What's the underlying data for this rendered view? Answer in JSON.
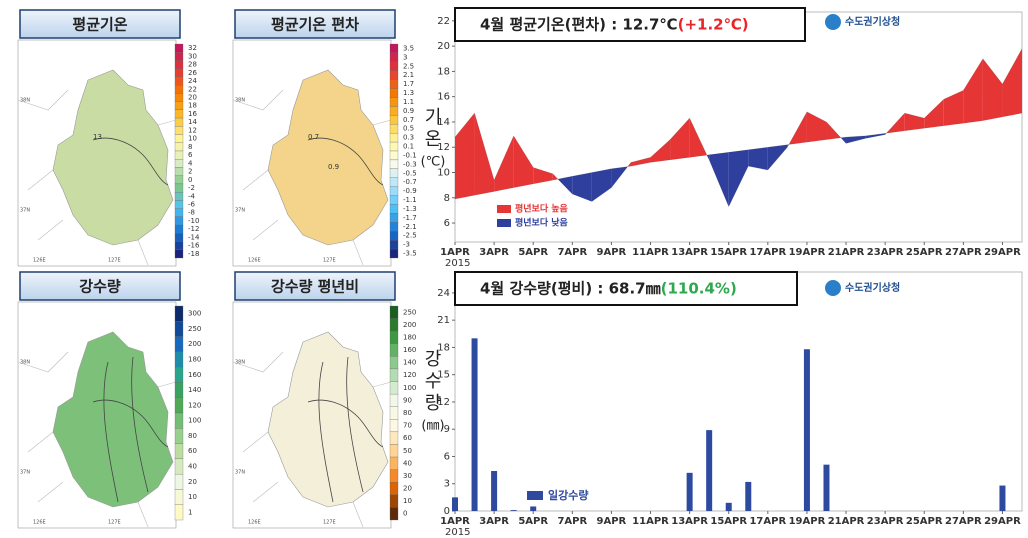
{
  "maps": [
    {
      "title": "평균기온",
      "fill": "#c9dca3",
      "colors": [
        "#c2185b",
        "#e53935",
        "#f57c00",
        "#fbc02d",
        "#fff59d",
        "#dcedc8",
        "#81c784",
        "#4fc3f7",
        "#1976d2",
        "#1a237e"
      ],
      "colorbar": [
        "32",
        "30",
        "28",
        "26",
        "24",
        "22",
        "20",
        "18",
        "16",
        "14",
        "12",
        "10",
        "8",
        "6",
        "4",
        "2",
        "0",
        "-2",
        "-4",
        "-6",
        "-8",
        "-10",
        "-12",
        "-14",
        "-16",
        "-18"
      ],
      "contour_labels": [
        "13"
      ]
    },
    {
      "title": "평균기온 편차",
      "fill": "#f3d48a",
      "colors": [
        "#c2185b",
        "#e53935",
        "#f57c00",
        "#fbc02d",
        "#fff59d",
        "#fffde7",
        "#b3e5fc",
        "#4fc3f7",
        "#1976d2",
        "#1a237e"
      ],
      "colorbar": [
        "3.5",
        "3",
        "2.5",
        "2.1",
        "1.7",
        "1.3",
        "1.1",
        "0.9",
        "0.7",
        "0.5",
        "0.3",
        "0.1",
        "-0.1",
        "-0.3",
        "-0.5",
        "-0.7",
        "-0.9",
        "-1.1",
        "-1.3",
        "-1.7",
        "-2.1",
        "-2.5",
        "-3",
        "-3.5"
      ],
      "contour_labels": [
        "0.7",
        "0.9"
      ]
    },
    {
      "title": "강수량",
      "fill": "#7cc07a",
      "colors": [
        "#0d2b6b",
        "#1565c0",
        "#26a69a",
        "#43a047",
        "#81c784",
        "#c5e1a5",
        "#f1f8e9",
        "#fff9c4"
      ],
      "colorbar": [
        "300",
        "250",
        "200",
        "180",
        "160",
        "140",
        "120",
        "100",
        "80",
        "60",
        "40",
        "20",
        "10",
        "1"
      ],
      "contour_labels": []
    },
    {
      "title": "강수량 평년비",
      "fill": "#f4efd9",
      "colors": [
        "#1b5e20",
        "#43a047",
        "#a5d6a7",
        "#f1f8e9",
        "#fff8e1",
        "#ffcc80",
        "#ef6c00",
        "#5d2a0a"
      ],
      "colorbar": [
        "250",
        "200",
        "180",
        "160",
        "140",
        "120",
        "100",
        "90",
        "80",
        "70",
        "60",
        "50",
        "40",
        "30",
        "20",
        "10",
        "0"
      ],
      "contour_labels": []
    }
  ],
  "geo_labels": [
    "38N",
    "37N",
    "126E",
    "127E"
  ],
  "chart_data": [
    {
      "type": "area_diff",
      "title": "4월 평균기온(편차) : 12.7℃",
      "title_note": "(+1.2℃)",
      "title_note_color": "#e8262a",
      "logo": "수도권기상청",
      "ylabel": [
        "기",
        "온",
        "(℃)"
      ],
      "categories": [
        "1APR",
        null,
        "3APR",
        null,
        "5APR",
        null,
        "7APR",
        null,
        "9APR",
        null,
        "11APR",
        null,
        "13APR",
        null,
        "15APR",
        null,
        "17APR",
        null,
        "19APR",
        null,
        "21APR",
        null,
        "23APR",
        null,
        "25APR",
        null,
        "27APR",
        null,
        "29APR",
        null
      ],
      "x_year": "2015",
      "series": [
        {
          "values": [
            12.8,
            14.7,
            9.4,
            12.9,
            10.4,
            9.9,
            8.3,
            7.7,
            8.8,
            10.8,
            11.2,
            12.6,
            14.3,
            11.0,
            7.3,
            10.5,
            10.2,
            12.0,
            14.8,
            14.0,
            12.3,
            12.7,
            13.0,
            14.7,
            14.3,
            15.8,
            16.5,
            19.0,
            17.0,
            19.8
          ]
        },
        {
          "values": [
            7.9,
            8.2,
            8.5,
            8.8,
            9.1,
            9.4,
            9.7,
            10.0,
            10.3,
            10.5,
            10.8,
            11.0,
            11.2,
            11.4,
            11.6,
            11.8,
            12.0,
            12.2,
            12.4,
            12.6,
            12.8,
            12.9,
            13.1,
            13.3,
            13.5,
            13.7,
            13.9,
            14.1,
            14.4,
            14.7
          ]
        }
      ],
      "legend": [
        {
          "label": "평년보다 높음",
          "color": "#e53535"
        },
        {
          "label": "평년보다 낮음",
          "color": "#2f3f9e"
        }
      ],
      "ylim": [
        4.5,
        22.7
      ],
      "yticks": [
        6,
        8,
        10,
        12,
        14,
        16,
        18,
        20,
        22
      ]
    },
    {
      "type": "bar",
      "title": "4월 강수량(평비) : 68.7㎜",
      "title_note": "(110.4%)",
      "title_note_color": "#2fa84f",
      "logo": "수도권기상청",
      "ylabel": [
        "강",
        "수",
        "량",
        "(㎜)"
      ],
      "categories": [
        "1APR",
        null,
        "3APR",
        null,
        "5APR",
        null,
        "7APR",
        null,
        "9APR",
        null,
        "11APR",
        null,
        "13APR",
        null,
        "15APR",
        null,
        "17APR",
        null,
        "19APR",
        null,
        "21APR",
        null,
        "23APR",
        null,
        "25APR",
        null,
        "27APR",
        null,
        "29APR",
        null
      ],
      "x_year": "2015",
      "series": [
        {
          "name": "일강수량",
          "color": "#2e4a9e",
          "values": [
            1.5,
            19.0,
            4.4,
            0.1,
            0.5,
            0,
            0,
            0,
            0,
            0,
            0,
            0,
            4.2,
            8.9,
            0.9,
            3.2,
            0,
            0,
            17.8,
            5.1,
            0,
            0,
            0,
            0,
            0,
            0,
            0,
            0,
            2.8,
            0
          ]
        }
      ],
      "ylim": [
        0,
        26.3
      ],
      "yticks": [
        0,
        3,
        6,
        9,
        12,
        15,
        18,
        21,
        24
      ]
    }
  ]
}
